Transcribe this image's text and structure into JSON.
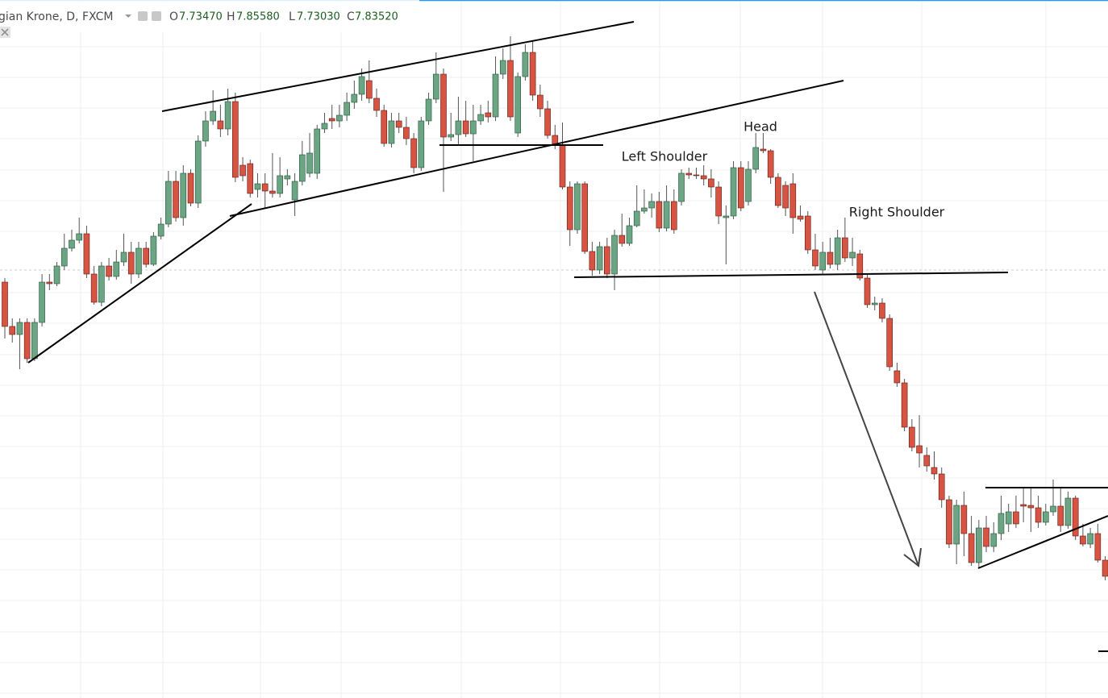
{
  "header": {
    "symbol": "gian Krone, D, FXCM",
    "ohlc": [
      {
        "label": "O",
        "value": "7.73470"
      },
      {
        "label": "H",
        "value": "7.85580"
      },
      {
        "label": "L",
        "value": "7.73030"
      },
      {
        "label": "C",
        "value": "7.83520"
      }
    ]
  },
  "chart_data": {
    "type": "candlestick",
    "up_color": "#6ba583",
    "down_color": "#d75442",
    "ylim": [
      7.334,
      8.2
    ],
    "annotations": [
      "Left Shoulder",
      "Head",
      "Right Shoulder"
    ],
    "ohlc": [
      [
        7.85,
        7.855,
        7.78,
        7.795
      ],
      [
        7.795,
        7.805,
        7.775,
        7.785
      ],
      [
        7.785,
        7.805,
        7.742,
        7.8
      ],
      [
        7.8,
        7.805,
        7.75,
        7.755
      ],
      [
        7.755,
        7.805,
        7.752,
        7.8
      ],
      [
        7.8,
        7.86,
        7.795,
        7.85
      ],
      [
        7.85,
        7.86,
        7.84,
        7.848
      ],
      [
        7.848,
        7.875,
        7.845,
        7.87
      ],
      [
        7.87,
        7.91,
        7.865,
        7.892
      ],
      [
        7.892,
        7.915,
        7.888,
        7.902
      ],
      [
        7.902,
        7.93,
        7.898,
        7.91
      ],
      [
        7.91,
        7.92,
        7.855,
        7.86
      ],
      [
        7.86,
        7.87,
        7.822,
        7.825
      ],
      [
        7.825,
        7.875,
        7.82,
        7.87
      ],
      [
        7.87,
        7.88,
        7.852,
        7.857
      ],
      [
        7.857,
        7.89,
        7.853,
        7.875
      ],
      [
        7.875,
        7.91,
        7.87,
        7.887
      ],
      [
        7.887,
        7.9,
        7.848,
        7.86
      ],
      [
        7.86,
        7.9,
        7.855,
        7.892
      ],
      [
        7.892,
        7.9,
        7.868,
        7.872
      ],
      [
        7.872,
        7.912,
        7.87,
        7.907
      ],
      [
        7.907,
        7.93,
        7.903,
        7.922
      ],
      [
        7.922,
        7.988,
        7.918,
        7.975
      ],
      [
        7.975,
        7.988,
        7.925,
        7.93
      ],
      [
        7.93,
        7.995,
        7.92,
        7.985
      ],
      [
        7.985,
        7.99,
        7.944,
        7.948
      ],
      [
        7.948,
        8.032,
        7.942,
        8.025
      ],
      [
        8.025,
        8.062,
        8.018,
        8.05
      ],
      [
        8.05,
        8.088,
        8.045,
        8.062
      ],
      [
        8.05,
        8.07,
        8.03,
        8.04
      ],
      [
        8.04,
        8.09,
        8.032,
        8.074
      ],
      [
        8.074,
        8.085,
        7.974,
        7.98
      ],
      [
        7.995,
        8.005,
        7.975,
        7.982
      ],
      [
        7.997,
        8.002,
        7.955,
        7.96
      ],
      [
        7.965,
        7.985,
        7.955,
        7.972
      ],
      [
        7.972,
        7.985,
        7.942,
        7.963
      ],
      [
        7.963,
        8.01,
        7.955,
        7.96
      ],
      [
        7.96,
        8.005,
        7.955,
        7.982
      ],
      [
        7.978,
        7.99,
        7.97,
        7.982
      ],
      [
        7.952,
        7.985,
        7.932,
        7.975
      ],
      [
        7.975,
        8.025,
        7.97,
        8.008
      ],
      [
        7.985,
        8.035,
        7.98,
        8.01
      ],
      [
        7.985,
        8.045,
        7.978,
        8.04
      ],
      [
        8.04,
        8.06,
        8.035,
        8.047
      ],
      [
        8.053,
        8.07,
        8.04,
        8.05
      ],
      [
        8.05,
        8.07,
        8.042,
        8.057
      ],
      [
        8.057,
        8.085,
        8.05,
        8.073
      ],
      [
        8.073,
        8.1,
        8.065,
        8.083
      ],
      [
        8.083,
        8.115,
        8.075,
        8.105
      ],
      [
        8.1,
        8.125,
        8.072,
        8.078
      ],
      [
        8.078,
        8.09,
        8.055,
        8.063
      ],
      [
        8.063,
        8.07,
        8.018,
        8.022
      ],
      [
        8.022,
        8.06,
        8.017,
        8.05
      ],
      [
        8.05,
        8.06,
        8.035,
        8.042
      ],
      [
        8.042,
        8.055,
        8.02,
        8.028
      ],
      [
        8.028,
        8.035,
        7.985,
        7.992
      ],
      [
        7.992,
        8.055,
        7.988,
        8.05
      ],
      [
        8.05,
        8.085,
        8.045,
        8.077
      ],
      [
        8.077,
        8.135,
        8.072,
        8.108
      ],
      [
        8.108,
        8.115,
        7.962,
        8.03
      ],
      [
        8.03,
        8.06,
        8.025,
        8.033
      ],
      [
        8.033,
        8.08,
        8.02,
        8.05
      ],
      [
        8.05,
        8.075,
        8.03,
        8.034
      ],
      [
        8.034,
        8.07,
        8.0,
        8.05
      ],
      [
        8.05,
        8.07,
        8.045,
        8.058
      ],
      [
        8.06,
        8.075,
        8.048,
        8.055
      ],
      [
        8.055,
        8.13,
        8.05,
        8.108
      ],
      [
        8.108,
        8.14,
        8.102,
        8.125
      ],
      [
        8.125,
        8.155,
        8.05,
        8.055
      ],
      [
        8.035,
        8.11,
        8.03,
        8.105
      ],
      [
        8.105,
        8.145,
        8.1,
        8.135
      ],
      [
        8.135,
        8.15,
        8.075,
        8.082
      ],
      [
        8.082,
        8.095,
        8.055,
        8.065
      ],
      [
        8.065,
        8.075,
        8.028,
        8.032
      ],
      [
        8.032,
        8.045,
        8.015,
        8.02
      ],
      [
        8.02,
        8.048,
        7.965,
        7.968
      ],
      [
        7.968,
        7.975,
        7.895,
        7.915
      ],
      [
        7.915,
        7.975,
        7.91,
        7.972
      ],
      [
        7.972,
        7.975,
        7.885,
        7.888
      ],
      [
        7.888,
        7.9,
        7.858,
        7.865
      ],
      [
        7.865,
        7.9,
        7.86,
        7.894
      ],
      [
        7.894,
        7.905,
        7.855,
        7.86
      ],
      [
        7.86,
        7.915,
        7.84,
        7.908
      ],
      [
        7.908,
        7.935,
        7.894,
        7.898
      ],
      [
        7.898,
        7.93,
        7.895,
        7.92
      ],
      [
        7.92,
        7.97,
        7.918,
        7.938
      ],
      [
        7.938,
        7.965,
        7.935,
        7.942
      ],
      [
        7.942,
        7.96,
        7.93,
        7.95
      ],
      [
        7.95,
        7.962,
        7.912,
        7.917
      ],
      [
        7.917,
        7.97,
        7.913,
        7.95
      ],
      [
        7.95,
        7.965,
        7.91,
        7.915
      ],
      [
        7.95,
        7.99,
        7.945,
        7.985
      ],
      [
        7.985,
        7.992,
        7.978,
        7.983
      ],
      [
        7.983,
        7.992,
        7.978,
        7.982
      ],
      [
        7.982,
        7.995,
        7.97,
        7.978
      ],
      [
        7.978,
        7.99,
        7.955,
        7.968
      ],
      [
        7.968,
        7.975,
        7.922,
        7.932
      ],
      [
        7.93,
        7.945,
        7.872,
        7.932
      ],
      [
        7.932,
        8.0,
        7.928,
        7.992
      ],
      [
        7.992,
        8.0,
        7.938,
        7.942
      ],
      [
        7.95,
        8.0,
        7.945,
        7.99
      ],
      [
        7.99,
        8.035,
        7.985,
        8.017
      ],
      [
        8.015,
        8.035,
        8.01,
        8.013
      ],
      [
        8.013,
        8.015,
        7.972,
        7.98
      ],
      [
        7.98,
        7.985,
        7.942,
        7.945
      ],
      [
        7.97,
        7.975,
        7.932,
        7.942
      ],
      [
        7.972,
        7.985,
        7.91,
        7.93
      ],
      [
        7.932,
        7.945,
        7.925,
        7.928
      ],
      [
        7.932,
        7.938,
        7.885,
        7.89
      ],
      [
        7.89,
        7.91,
        7.865,
        7.87
      ],
      [
        7.865,
        7.9,
        7.86,
        7.887
      ],
      [
        7.887,
        7.905,
        7.867,
        7.872
      ],
      [
        7.872,
        7.915,
        7.865,
        7.905
      ],
      [
        7.905,
        7.93,
        7.875,
        7.88
      ],
      [
        7.88,
        7.905,
        7.87,
        7.887
      ],
      [
        7.885,
        7.89,
        7.852,
        7.855
      ],
      [
        7.855,
        7.86,
        7.818,
        7.822
      ],
      [
        7.822,
        7.832,
        7.815,
        7.824
      ],
      [
        7.824,
        7.83,
        7.8,
        7.805
      ],
      [
        7.805,
        7.81,
        7.74,
        7.745
      ],
      [
        7.74,
        7.75,
        7.72,
        7.725
      ],
      [
        7.725,
        7.73,
        7.665,
        7.67
      ],
      [
        7.67,
        7.68,
        7.64,
        7.645
      ],
      [
        7.647,
        7.685,
        7.62,
        7.638
      ],
      [
        7.635,
        7.645,
        7.615,
        7.622
      ],
      [
        7.62,
        7.64,
        7.605,
        7.612
      ],
      [
        7.612,
        7.62,
        7.57,
        7.58
      ],
      [
        7.58,
        7.585,
        7.52,
        7.525
      ],
      [
        7.525,
        7.58,
        7.5,
        7.573
      ],
      [
        7.573,
        7.59,
        7.51,
        7.538
      ],
      [
        7.538,
        7.56,
        7.498,
        7.502
      ],
      [
        7.502,
        7.555,
        7.495,
        7.545
      ],
      [
        7.545,
        7.56,
        7.515,
        7.522
      ],
      [
        7.522,
        7.552,
        7.515,
        7.538
      ],
      [
        7.538,
        7.585,
        7.53,
        7.563
      ],
      [
        7.55,
        7.575,
        7.54,
        7.565
      ],
      [
        7.565,
        7.585,
        7.545,
        7.55
      ],
      [
        7.574,
        7.595,
        7.552,
        7.572
      ],
      [
        7.573,
        7.595,
        7.54,
        7.57
      ],
      [
        7.57,
        7.585,
        7.545,
        7.552
      ],
      [
        7.552,
        7.575,
        7.548,
        7.565
      ],
      [
        7.565,
        7.605,
        7.56,
        7.572
      ],
      [
        7.572,
        7.595,
        7.54,
        7.548
      ],
      [
        7.548,
        7.59,
        7.544,
        7.582
      ],
      [
        7.582,
        7.585,
        7.53,
        7.535
      ],
      [
        7.535,
        7.55,
        7.522,
        7.525
      ],
      [
        7.525,
        7.545,
        7.52,
        7.538
      ],
      [
        7.538,
        7.55,
        7.502,
        7.505
      ],
      [
        7.505,
        7.51,
        7.48,
        7.485
      ]
    ]
  }
}
